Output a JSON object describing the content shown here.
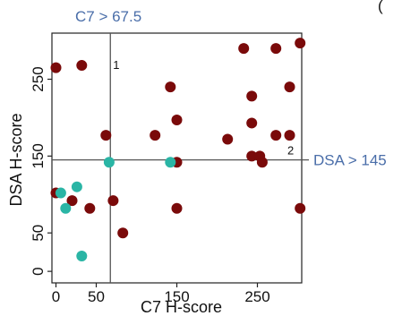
{
  "chart_data": {
    "type": "scatter",
    "title": "",
    "xlabel": "C7 H-score",
    "ylabel": "DSA H-score",
    "xlim": [
      -5,
      305
    ],
    "ylim": [
      -15,
      310
    ],
    "x_ticks": [
      0,
      50,
      150,
      250
    ],
    "y_ticks": [
      0,
      50,
      150,
      250
    ],
    "grid": false,
    "thresholds": {
      "vertical": {
        "x": 67.5,
        "label": "C7 > 67.5",
        "color": "#4a6ea9"
      },
      "horizontal": {
        "y": 145,
        "label": "DSA > 145",
        "color": "#4a6ea9"
      }
    },
    "region_labels": [
      {
        "text": "1",
        "x": 75,
        "y": 270
      },
      {
        "text": "2",
        "x": 300,
        "y": 155
      }
    ],
    "corner_label": "(",
    "series": [
      {
        "color": "#7a0a0a",
        "points": [
          [
            0,
            265
          ],
          [
            32,
            268
          ],
          [
            62,
            177
          ],
          [
            71,
            92
          ],
          [
            83,
            50
          ],
          [
            123,
            177
          ],
          [
            142,
            240
          ],
          [
            150,
            197
          ],
          [
            150,
            142
          ],
          [
            150,
            82
          ],
          [
            213,
            172
          ],
          [
            233,
            290
          ],
          [
            243,
            228
          ],
          [
            243,
            193
          ],
          [
            243,
            150
          ],
          [
            253,
            150
          ],
          [
            256,
            142
          ],
          [
            273,
            290
          ],
          [
            273,
            177
          ],
          [
            290,
            240
          ],
          [
            290,
            177
          ],
          [
            303,
            297
          ],
          [
            303,
            82
          ],
          [
            0,
            102
          ],
          [
            20,
            92
          ],
          [
            42,
            82
          ]
        ]
      },
      {
        "color": "#2ab5a5",
        "points": [
          [
            6,
            102
          ],
          [
            12,
            82
          ],
          [
            26,
            110
          ],
          [
            32,
            20
          ],
          [
            66,
            142
          ],
          [
            142,
            142
          ]
        ]
      }
    ]
  }
}
